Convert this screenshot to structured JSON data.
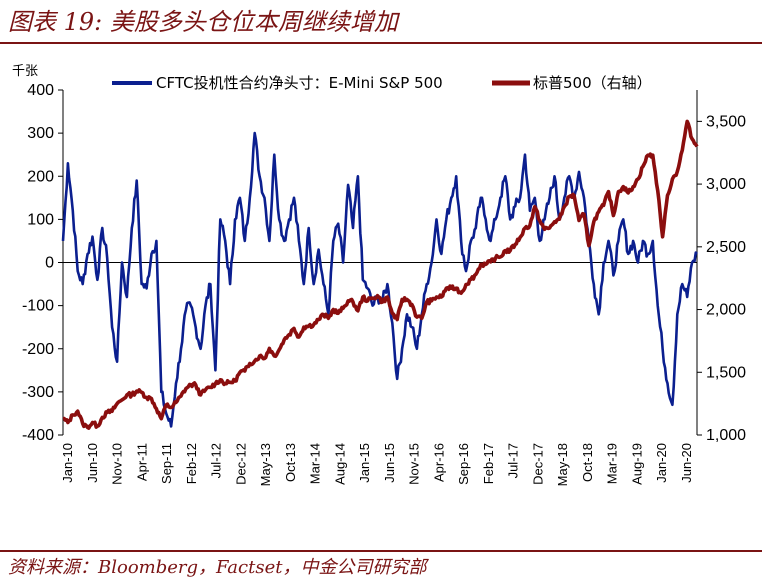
{
  "figure": {
    "title": "图表 19:  美股多头仓位本周继续增加",
    "source": "资料来源：Bloomberg，Factset，中金公司研究部"
  },
  "chart_data": {
    "type": "line",
    "left_axis": {
      "unit": "千张",
      "range": [
        -400,
        400
      ],
      "ticks": [
        -400,
        -300,
        -200,
        -100,
        0,
        100,
        200,
        300,
        400
      ],
      "tick_labels": [
        "-400",
        "-300",
        "-200",
        "-100",
        "0",
        "100",
        "200",
        "300",
        "400"
      ]
    },
    "right_axis": {
      "range": [
        1000,
        3750
      ],
      "ticks": [
        1000,
        1500,
        2000,
        2500,
        3000,
        3500
      ],
      "tick_labels": [
        "1,000",
        "1,500",
        "2,000",
        "2,500",
        "3,000",
        "3,500"
      ]
    },
    "x_range": [
      "2010-01",
      "2020-10"
    ],
    "x_tick_labels": [
      "Jan-10",
      "Jun-10",
      "Nov-10",
      "Apr-11",
      "Sep-11",
      "Feb-12",
      "Jul-12",
      "Dec-12",
      "May-13",
      "Oct-13",
      "Mar-14",
      "Aug-14",
      "Jan-15",
      "Jun-15",
      "Nov-15",
      "Apr-16",
      "Sep-16",
      "Feb-17",
      "Jul-17",
      "Dec-17",
      "May-18",
      "Oct-18",
      "Mar-19",
      "Aug-19",
      "Jan-20",
      "Jun-20"
    ],
    "grid": false,
    "legend_position": "top",
    "series": [
      {
        "name": "CFTC投机性合约净头寸：E-Mini S&P 500",
        "axis": "left",
        "color": "#0b1f8f",
        "points": [
          [
            "2010-01",
            50
          ],
          [
            "2010-02",
            230
          ],
          [
            "2010-03",
            120
          ],
          [
            "2010-04",
            -20
          ],
          [
            "2010-05",
            -50
          ],
          [
            "2010-06",
            20
          ],
          [
            "2010-07",
            60
          ],
          [
            "2010-08",
            -40
          ],
          [
            "2010-09",
            80
          ],
          [
            "2010-10",
            10
          ],
          [
            "2010-11",
            -150
          ],
          [
            "2010-12",
            -230
          ],
          [
            "2011-01",
            0
          ],
          [
            "2011-02",
            -80
          ],
          [
            "2011-03",
            80
          ],
          [
            "2011-04",
            190
          ],
          [
            "2011-05",
            -50
          ],
          [
            "2011-06",
            -60
          ],
          [
            "2011-07",
            20
          ],
          [
            "2011-08",
            50
          ],
          [
            "2011-09",
            -300
          ],
          [
            "2011-10",
            -350
          ],
          [
            "2011-11",
            -380
          ],
          [
            "2011-12",
            -280
          ],
          [
            "2012-01",
            -200
          ],
          [
            "2012-02",
            -110
          ],
          [
            "2012-03",
            -100
          ],
          [
            "2012-04",
            -150
          ],
          [
            "2012-05",
            -200
          ],
          [
            "2012-06",
            -100
          ],
          [
            "2012-07",
            -50
          ],
          [
            "2012-08",
            -250
          ],
          [
            "2012-09",
            100
          ],
          [
            "2012-10",
            50
          ],
          [
            "2012-11",
            -50
          ],
          [
            "2012-12",
            100
          ],
          [
            "2013-01",
            150
          ],
          [
            "2013-02",
            50
          ],
          [
            "2013-03",
            150
          ],
          [
            "2013-04",
            300
          ],
          [
            "2013-05",
            200
          ],
          [
            "2013-06",
            150
          ],
          [
            "2013-07",
            50
          ],
          [
            "2013-08",
            250
          ],
          [
            "2013-09",
            100
          ],
          [
            "2013-10",
            50
          ],
          [
            "2013-11",
            100
          ],
          [
            "2013-12",
            150
          ],
          [
            "2014-01",
            50
          ],
          [
            "2014-02",
            -50
          ],
          [
            "2014-03",
            80
          ],
          [
            "2014-04",
            -50
          ],
          [
            "2014-05",
            30
          ],
          [
            "2014-06",
            -50
          ],
          [
            "2014-07",
            -120
          ],
          [
            "2014-08",
            50
          ],
          [
            "2014-09",
            90
          ],
          [
            "2014-10",
            0
          ],
          [
            "2014-11",
            180
          ],
          [
            "2014-12",
            80
          ],
          [
            "2015-01",
            200
          ],
          [
            "2015-02",
            -40
          ],
          [
            "2015-03",
            -60
          ],
          [
            "2015-04",
            -100
          ],
          [
            "2015-05",
            -80
          ],
          [
            "2015-06",
            -90
          ],
          [
            "2015-07",
            -50
          ],
          [
            "2015-08",
            -140
          ],
          [
            "2015-09",
            -270
          ],
          [
            "2015-10",
            -200
          ],
          [
            "2015-11",
            -120
          ],
          [
            "2015-12",
            -150
          ],
          [
            "2016-01",
            -200
          ],
          [
            "2016-02",
            -120
          ],
          [
            "2016-03",
            -50
          ],
          [
            "2016-04",
            0
          ],
          [
            "2016-05",
            100
          ],
          [
            "2016-06",
            20
          ],
          [
            "2016-07",
            100
          ],
          [
            "2016-08",
            150
          ],
          [
            "2016-09",
            200
          ],
          [
            "2016-10",
            50
          ],
          [
            "2016-11",
            -20
          ],
          [
            "2016-12",
            50
          ],
          [
            "2017-01",
            80
          ],
          [
            "2017-02",
            150
          ],
          [
            "2017-03",
            100
          ],
          [
            "2017-04",
            50
          ],
          [
            "2017-05",
            100
          ],
          [
            "2017-06",
            150
          ],
          [
            "2017-07",
            200
          ],
          [
            "2017-08",
            100
          ],
          [
            "2017-09",
            130
          ],
          [
            "2017-10",
            150
          ],
          [
            "2017-11",
            250
          ],
          [
            "2017-12",
            120
          ],
          [
            "2018-01",
            150
          ],
          [
            "2018-02",
            50
          ],
          [
            "2018-03",
            100
          ],
          [
            "2018-04",
            150
          ],
          [
            "2018-05",
            200
          ],
          [
            "2018-06",
            100
          ],
          [
            "2018-07",
            150
          ],
          [
            "2018-08",
            200
          ],
          [
            "2018-09",
            150
          ],
          [
            "2018-10",
            210
          ],
          [
            "2018-11",
            150
          ],
          [
            "2018-12",
            50
          ],
          [
            "2019-01",
            -50
          ],
          [
            "2019-02",
            -120
          ],
          [
            "2019-03",
            0
          ],
          [
            "2019-04",
            50
          ],
          [
            "2019-05",
            -30
          ],
          [
            "2019-06",
            50
          ],
          [
            "2019-07",
            100
          ],
          [
            "2019-08",
            20
          ],
          [
            "2019-09",
            50
          ],
          [
            "2019-10",
            0
          ],
          [
            "2019-11",
            50
          ],
          [
            "2019-12",
            20
          ],
          [
            "2020-01",
            50
          ],
          [
            "2020-02",
            -100
          ],
          [
            "2020-03",
            -200
          ],
          [
            "2020-04",
            -280
          ],
          [
            "2020-05",
            -330
          ],
          [
            "2020-06",
            -120
          ],
          [
            "2020-07",
            -50
          ],
          [
            "2020-08",
            -80
          ],
          [
            "2020-09",
            0
          ],
          [
            "2020-10",
            20
          ]
        ]
      },
      {
        "name": "标普500（右轴）",
        "axis": "right",
        "color": "#8b0e0e",
        "points": [
          [
            "2010-01",
            1130
          ],
          [
            "2010-02",
            1100
          ],
          [
            "2010-03",
            1160
          ],
          [
            "2010-04",
            1190
          ],
          [
            "2010-05",
            1090
          ],
          [
            "2010-06",
            1060
          ],
          [
            "2010-07",
            1100
          ],
          [
            "2010-08",
            1070
          ],
          [
            "2010-09",
            1140
          ],
          [
            "2010-10",
            1180
          ],
          [
            "2010-11",
            1190
          ],
          [
            "2010-12",
            1250
          ],
          [
            "2011-01",
            1280
          ],
          [
            "2011-02",
            1320
          ],
          [
            "2011-03",
            1320
          ],
          [
            "2011-04",
            1350
          ],
          [
            "2011-05",
            1340
          ],
          [
            "2011-06",
            1300
          ],
          [
            "2011-07",
            1290
          ],
          [
            "2011-08",
            1210
          ],
          [
            "2011-09",
            1130
          ],
          [
            "2011-10",
            1240
          ],
          [
            "2011-11",
            1220
          ],
          [
            "2011-12",
            1260
          ],
          [
            "2012-01",
            1310
          ],
          [
            "2012-02",
            1370
          ],
          [
            "2012-03",
            1400
          ],
          [
            "2012-04",
            1400
          ],
          [
            "2012-05",
            1320
          ],
          [
            "2012-06",
            1360
          ],
          [
            "2012-07",
            1380
          ],
          [
            "2012-08",
            1410
          ],
          [
            "2012-09",
            1440
          ],
          [
            "2012-10",
            1410
          ],
          [
            "2012-11",
            1420
          ],
          [
            "2012-12",
            1430
          ],
          [
            "2013-01",
            1500
          ],
          [
            "2013-02",
            1510
          ],
          [
            "2013-03",
            1570
          ],
          [
            "2013-04",
            1590
          ],
          [
            "2013-05",
            1630
          ],
          [
            "2013-06",
            1610
          ],
          [
            "2013-07",
            1690
          ],
          [
            "2013-08",
            1630
          ],
          [
            "2013-09",
            1680
          ],
          [
            "2013-10",
            1760
          ],
          [
            "2013-11",
            1800
          ],
          [
            "2013-12",
            1850
          ],
          [
            "2014-01",
            1780
          ],
          [
            "2014-02",
            1860
          ],
          [
            "2014-03",
            1870
          ],
          [
            "2014-04",
            1880
          ],
          [
            "2014-05",
            1920
          ],
          [
            "2014-06",
            1960
          ],
          [
            "2014-07",
            1930
          ],
          [
            "2014-08",
            2000
          ],
          [
            "2014-09",
            1970
          ],
          [
            "2014-10",
            2010
          ],
          [
            "2014-11",
            2070
          ],
          [
            "2014-12",
            2060
          ],
          [
            "2015-01",
            1990
          ],
          [
            "2015-02",
            2100
          ],
          [
            "2015-03",
            2070
          ],
          [
            "2015-04",
            2090
          ],
          [
            "2015-05",
            2110
          ],
          [
            "2015-06",
            2060
          ],
          [
            "2015-07",
            2100
          ],
          [
            "2015-08",
            1970
          ],
          [
            "2015-09",
            1920
          ],
          [
            "2015-10",
            2080
          ],
          [
            "2015-11",
            2080
          ],
          [
            "2015-12",
            2040
          ],
          [
            "2016-01",
            1940
          ],
          [
            "2016-02",
            1930
          ],
          [
            "2016-03",
            2060
          ],
          [
            "2016-04",
            2070
          ],
          [
            "2016-05",
            2100
          ],
          [
            "2016-06",
            2100
          ],
          [
            "2016-07",
            2170
          ],
          [
            "2016-08",
            2170
          ],
          [
            "2016-09",
            2170
          ],
          [
            "2016-10",
            2130
          ],
          [
            "2016-11",
            2200
          ],
          [
            "2016-12",
            2240
          ],
          [
            "2017-01",
            2280
          ],
          [
            "2017-02",
            2360
          ],
          [
            "2017-03",
            2360
          ],
          [
            "2017-04",
            2380
          ],
          [
            "2017-05",
            2410
          ],
          [
            "2017-06",
            2420
          ],
          [
            "2017-07",
            2470
          ],
          [
            "2017-08",
            2470
          ],
          [
            "2017-09",
            2520
          ],
          [
            "2017-10",
            2575
          ],
          [
            "2017-11",
            2650
          ],
          [
            "2017-12",
            2670
          ],
          [
            "2018-01",
            2820
          ],
          [
            "2018-02",
            2710
          ],
          [
            "2018-03",
            2640
          ],
          [
            "2018-04",
            2650
          ],
          [
            "2018-05",
            2700
          ],
          [
            "2018-06",
            2720
          ],
          [
            "2018-07",
            2820
          ],
          [
            "2018-08",
            2900
          ],
          [
            "2018-09",
            2910
          ],
          [
            "2018-10",
            2710
          ],
          [
            "2018-11",
            2760
          ],
          [
            "2018-12",
            2510
          ],
          [
            "2019-01",
            2700
          ],
          [
            "2019-02",
            2780
          ],
          [
            "2019-03",
            2830
          ],
          [
            "2019-04",
            2940
          ],
          [
            "2019-05",
            2750
          ],
          [
            "2019-06",
            2940
          ],
          [
            "2019-07",
            2980
          ],
          [
            "2019-08",
            2930
          ],
          [
            "2019-09",
            2980
          ],
          [
            "2019-10",
            3040
          ],
          [
            "2019-11",
            3140
          ],
          [
            "2019-12",
            3230
          ],
          [
            "2020-01",
            3230
          ],
          [
            "2020-02",
            2950
          ],
          [
            "2020-03",
            2580
          ],
          [
            "2020-04",
            2910
          ],
          [
            "2020-05",
            3040
          ],
          [
            "2020-06",
            3100
          ],
          [
            "2020-07",
            3270
          ],
          [
            "2020-08",
            3500
          ],
          [
            "2020-09",
            3360
          ],
          [
            "2020-10",
            3300
          ]
        ]
      }
    ]
  }
}
